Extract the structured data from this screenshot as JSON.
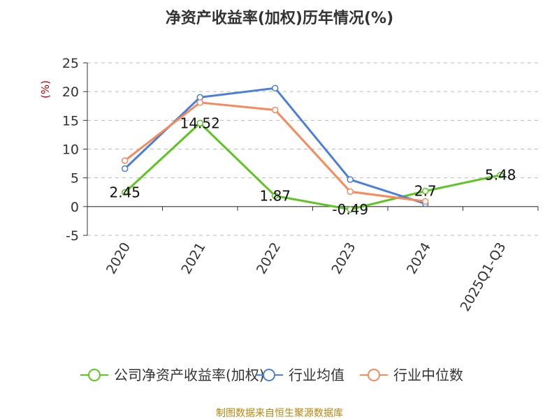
{
  "chart_data": {
    "type": "line",
    "title": "净资产收益率(加权)历年情况(%)",
    "ylabel": "(%)",
    "xlabel": "",
    "categories": [
      "2020",
      "2021",
      "2022",
      "2023",
      "2024",
      "2025Q1-Q3"
    ],
    "ylim": [
      -5,
      25
    ],
    "yticks": [
      -5,
      0,
      5,
      10,
      15,
      20,
      25
    ],
    "grid": true,
    "legend_position": "bottom",
    "series": [
      {
        "name": "公司净资产收益率(加权)",
        "color": "#5cc51f",
        "values": [
          2.45,
          14.52,
          1.87,
          -0.49,
          2.7,
          5.48
        ],
        "labels": [
          "2.45",
          "14.52",
          "1.87",
          "-0.49",
          "2.7",
          "5.48"
        ]
      },
      {
        "name": "行业均值",
        "color": "#4b7fdb",
        "values": [
          6.6,
          19.0,
          20.6,
          4.7,
          0.5,
          null
        ]
      },
      {
        "name": "行业中位数",
        "color": "#f7895a",
        "values": [
          8.0,
          18.1,
          16.8,
          2.6,
          0.9,
          null
        ]
      }
    ]
  },
  "source": "制图数据来自恒生聚源数据库"
}
